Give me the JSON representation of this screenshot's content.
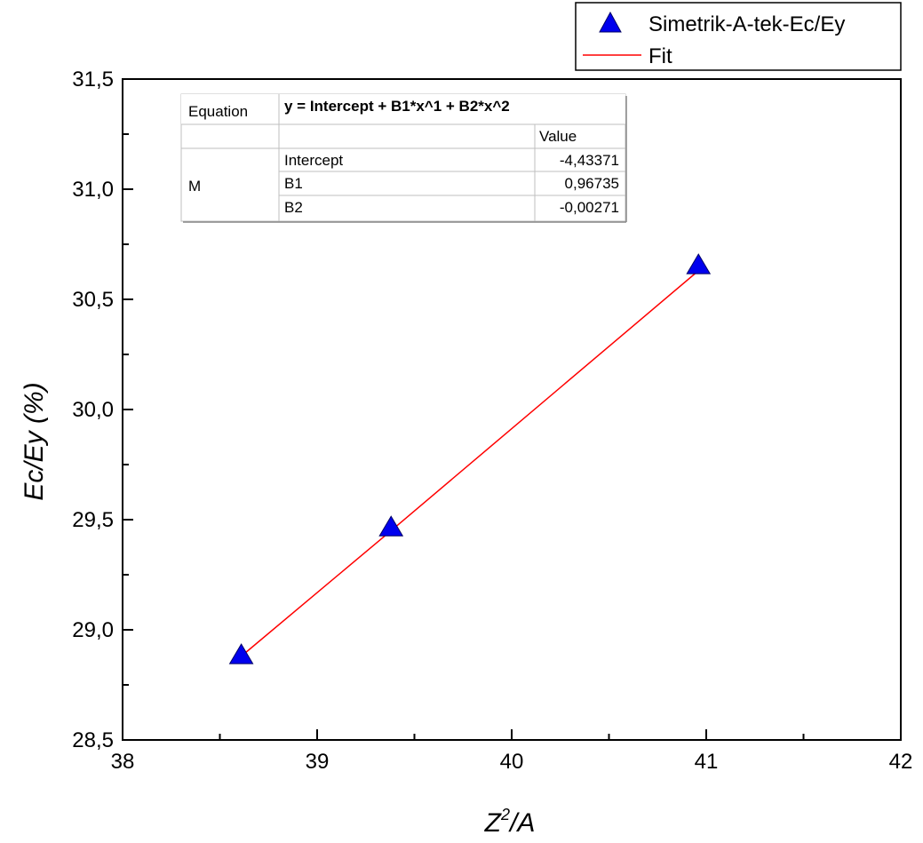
{
  "chart_data": {
    "type": "scatter",
    "xlabel": {
      "main": "Z",
      "sup": "2",
      "rest": "/A"
    },
    "ylabel": "Ec/Ey (%)",
    "xlim": [
      38,
      42
    ],
    "ylim": [
      28.5,
      31.5
    ],
    "x_ticks": [
      "38",
      "39",
      "40",
      "41",
      "42"
    ],
    "y_ticks": [
      "28,5",
      "29,0",
      "29,5",
      "30,0",
      "30,5",
      "31,0",
      "31,5"
    ],
    "grid": false,
    "legend_position": "top-right, above plot",
    "series": [
      {
        "name": "Simetrik-A-tek-Ec/Ey",
        "kind": "scatter",
        "marker": "triangle",
        "color": "#0000ff",
        "x": [
          38.61,
          39.38,
          40.96
        ],
        "y": [
          28.88,
          29.46,
          30.65
        ]
      },
      {
        "name": "Fit",
        "kind": "line",
        "color": "#ff0000",
        "x": [
          38.61,
          39.38,
          40.96
        ],
        "y": [
          28.88,
          29.45,
          30.63
        ]
      }
    ],
    "fit_table": {
      "equation_label": "Equation",
      "equation": "y = Intercept + B1*x^1 + B2*x^2",
      "value_header": "Value",
      "model_label": "M",
      "params": [
        {
          "name": "Intercept",
          "value": "-4,43371"
        },
        {
          "name": "B1",
          "value": "0,96735"
        },
        {
          "name": "B2",
          "value": "-0,00271"
        }
      ]
    }
  }
}
